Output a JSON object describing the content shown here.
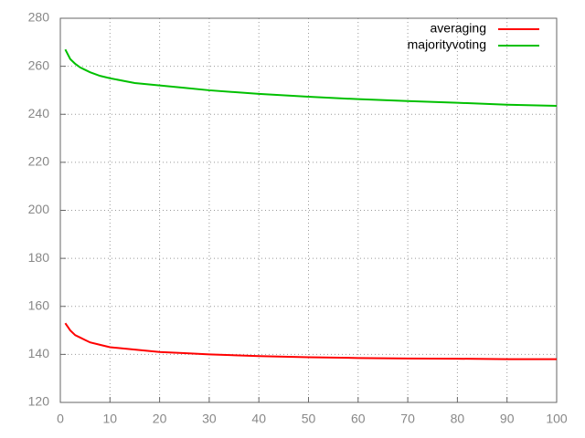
{
  "chart_data": {
    "type": "line",
    "x": [
      1,
      2,
      3,
      4,
      5,
      6,
      8,
      10,
      15,
      20,
      25,
      30,
      40,
      50,
      60,
      70,
      80,
      90,
      100
    ],
    "series": [
      {
        "name": "averaging",
        "color": "#ff0000",
        "values": [
          153,
          150,
          148,
          147,
          146,
          145,
          144,
          143,
          142,
          141,
          140.5,
          140,
          139.3,
          138.8,
          138.5,
          138.3,
          138.2,
          138,
          138
        ]
      },
      {
        "name": "majorityvoting",
        "color": "#00c000",
        "values": [
          267,
          263,
          261,
          259.5,
          258.5,
          257.5,
          256,
          255,
          253,
          252,
          251,
          250,
          248.5,
          247.3,
          246.3,
          245.5,
          244.8,
          244,
          243.5
        ]
      }
    ],
    "xlim": [
      0,
      100
    ],
    "xticks": [
      0,
      10,
      20,
      30,
      40,
      50,
      60,
      70,
      80,
      90,
      100
    ],
    "ylim": [
      120,
      280
    ],
    "yticks": [
      120,
      140,
      160,
      180,
      200,
      220,
      240,
      260,
      280
    ],
    "grid": true,
    "legend": "top-right"
  }
}
